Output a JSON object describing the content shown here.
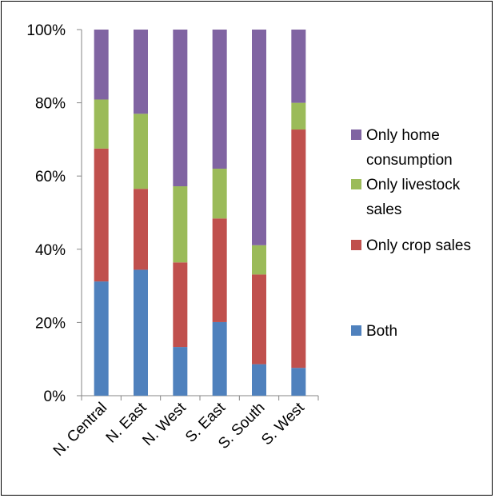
{
  "chart_data": {
    "type": "bar",
    "stacked": "percent",
    "categories": [
      "N. Central",
      "N. East",
      "N. West",
      "S. East",
      "S. South",
      "S. West"
    ],
    "series": [
      {
        "name": "Both",
        "color": "#4F81BD",
        "values": [
          31.2,
          34.4,
          13.3,
          20.1,
          8.6,
          7.6
        ]
      },
      {
        "name": "Only crop sales",
        "color": "#C0504D",
        "values": [
          36.3,
          22.1,
          23.1,
          28.3,
          24.5,
          65.1
        ]
      },
      {
        "name": "Only livestock sales",
        "color": "#9BBB59",
        "values": [
          13.4,
          20.5,
          20.8,
          13.6,
          8.0,
          7.3
        ]
      },
      {
        "name": "Only home consumption",
        "color": "#8064A2",
        "values": [
          19.1,
          23.0,
          42.8,
          38.0,
          58.9,
          20.0
        ]
      }
    ],
    "y_ticks": [
      "0%",
      "20%",
      "40%",
      "60%",
      "80%",
      "100%"
    ],
    "ylim": [
      0,
      100
    ],
    "grid": false,
    "legend_position": "right",
    "legend_order": [
      "Only home consumption",
      "Only livestock sales",
      "Only crop sales",
      "Both"
    ],
    "legend_lines": {
      "Only home consumption": [
        "Only home",
        "consumption"
      ],
      "Only livestock sales": [
        "Only livestock",
        "sales"
      ],
      "Only crop sales": [
        "Only crop sales"
      ],
      "Both": [
        "Both"
      ]
    }
  }
}
